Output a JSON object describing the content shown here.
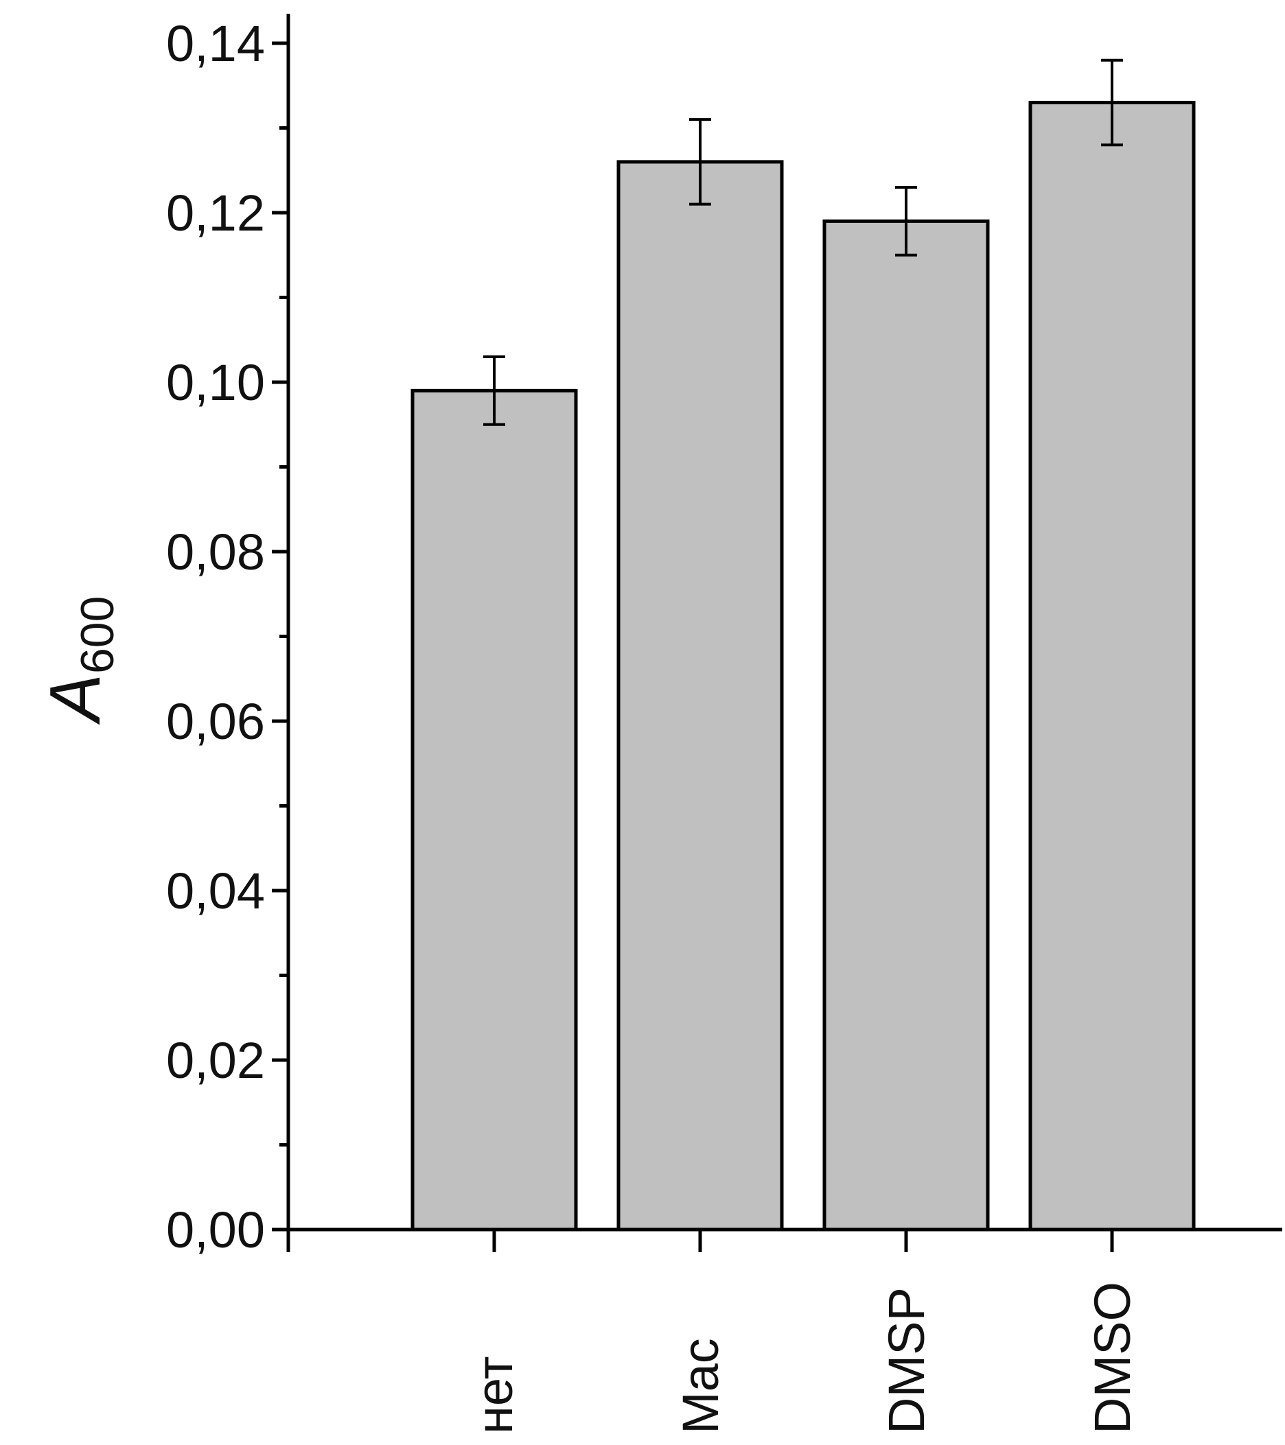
{
  "chart_data": {
    "type": "bar",
    "categories": [
      "нет",
      "Mac",
      "DMSP",
      "DMSO"
    ],
    "values": [
      0.099,
      0.126,
      0.119,
      0.133
    ],
    "error": [
      0.004,
      0.005,
      0.004,
      0.005
    ],
    "ylabel_main": "A",
    "ylabel_sub": "600",
    "ylim": [
      0,
      0.14
    ],
    "yticks": [
      0,
      0.02,
      0.04,
      0.06,
      0.08,
      0.1,
      0.12,
      0.14
    ],
    "ytick_labels": [
      "0,00",
      "0,02",
      "0,04",
      "0,06",
      "0,08",
      "0,10",
      "0,12",
      "0,14"
    ],
    "grid": false,
    "bar_color": "#c0c0c0",
    "edge_color": "#000000"
  }
}
